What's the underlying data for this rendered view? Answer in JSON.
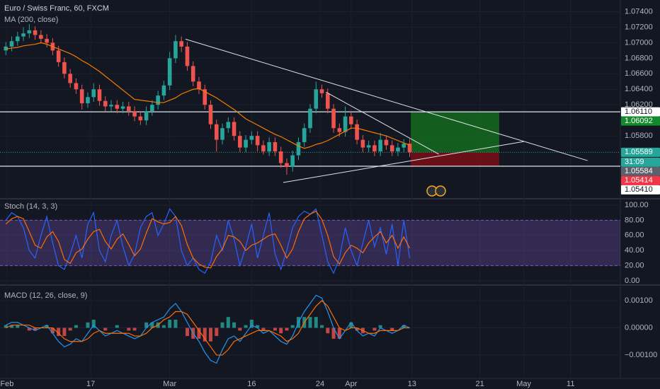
{
  "chart_data": [
    {
      "type": "candlestick",
      "title": "Euro / Swiss Franc, 60, FXCM",
      "xlim": [
        -1,
        105
      ],
      "xticks": [
        {
          "value": 0.2,
          "label": "Feb"
        },
        {
          "value": 14.5,
          "label": "17"
        },
        {
          "value": 28,
          "label": "Mar"
        },
        {
          "value": 42,
          "label": "16"
        },
        {
          "value": 53.7,
          "label": "24"
        },
        {
          "value": 59,
          "label": "Apr"
        },
        {
          "value": 69.4,
          "label": "13"
        },
        {
          "value": 81,
          "label": "21"
        },
        {
          "value": 88.5,
          "label": "May"
        },
        {
          "value": 96.5,
          "label": "11"
        }
      ],
      "ylim": [
        1.05,
        1.0755
      ],
      "yticks": [
        {
          "value": 1.074,
          "label": "1.07400"
        },
        {
          "value": 1.072,
          "label": "1.07200"
        },
        {
          "value": 1.07,
          "label": "1.07000"
        },
        {
          "value": 1.068,
          "label": "1.06800"
        },
        {
          "value": 1.066,
          "label": "1.06600"
        },
        {
          "value": 1.064,
          "label": "1.06400"
        },
        {
          "value": 1.062,
          "label": "1.06200"
        },
        {
          "value": 1.058,
          "label": "1.05800"
        }
      ],
      "grid": true,
      "up_color": "#26a69a",
      "down_color": "#ef5350",
      "open": [
        1.069,
        1.0695,
        1.0702,
        1.0708,
        1.0712,
        1.0716,
        1.071,
        1.0705,
        1.07,
        1.069,
        1.0675,
        1.066,
        1.0648,
        1.064,
        1.0622,
        1.063,
        1.064,
        1.0625,
        1.0618,
        1.062,
        1.0615,
        1.0618,
        1.0612,
        1.0605,
        1.06,
        1.0612,
        1.062,
        1.0632,
        1.0645,
        1.068,
        1.0702,
        1.0695,
        1.067,
        1.065,
        1.064,
        1.062,
        1.0595,
        1.0575,
        1.059,
        1.0598,
        1.058,
        1.0565,
        1.0575,
        1.058,
        1.0568,
        1.056,
        1.0572,
        1.056,
        1.0545,
        1.054,
        1.0555,
        1.0572,
        1.059,
        1.0615,
        1.064,
        1.0635,
        1.0615,
        1.059,
        1.0585,
        1.0605,
        1.0595,
        1.0575,
        1.0565,
        1.0568,
        1.056,
        1.0575,
        1.0568,
        1.056,
        1.0565,
        1.057
      ],
      "high": [
        1.0701,
        1.0708,
        1.0714,
        1.072,
        1.0724,
        1.0721,
        1.0716,
        1.0711,
        1.0706,
        1.0696,
        1.0681,
        1.0666,
        1.0654,
        1.0646,
        1.0636,
        1.0648,
        1.0646,
        1.0631,
        1.0626,
        1.0626,
        1.0624,
        1.0624,
        1.0618,
        1.0611,
        1.0618,
        1.0626,
        1.0638,
        1.0651,
        1.0688,
        1.071,
        1.0708,
        1.0701,
        1.0676,
        1.0656,
        1.0646,
        1.0626,
        1.0601,
        1.0596,
        1.0604,
        1.0604,
        1.0586,
        1.0581,
        1.0586,
        1.0586,
        1.0574,
        1.0578,
        1.0578,
        1.0566,
        1.0551,
        1.0561,
        1.0578,
        1.0596,
        1.0621,
        1.065,
        1.0646,
        1.0641,
        1.0621,
        1.0596,
        1.0618,
        1.0611,
        1.0601,
        1.0581,
        1.0574,
        1.0574,
        1.0584,
        1.0581,
        1.0574,
        1.0571,
        1.0576,
        1.0576
      ],
      "low": [
        1.0684,
        1.0689,
        1.0696,
        1.0702,
        1.0706,
        1.0704,
        1.0699,
        1.0694,
        1.0684,
        1.0669,
        1.0654,
        1.0642,
        1.0634,
        1.0614,
        1.0616,
        1.0624,
        1.0619,
        1.0612,
        1.0612,
        1.0609,
        1.0609,
        1.0606,
        1.0599,
        1.0594,
        1.0594,
        1.0606,
        1.0614,
        1.0626,
        1.0639,
        1.0674,
        1.0688,
        1.0664,
        1.0644,
        1.0634,
        1.0614,
        1.0589,
        1.056,
        1.0569,
        1.0584,
        1.0574,
        1.0559,
        1.0559,
        1.0569,
        1.056,
        1.0556,
        1.0554,
        1.0554,
        1.0539,
        1.053,
        1.0534,
        1.0549,
        1.0566,
        1.0584,
        1.0609,
        1.0629,
        1.0609,
        1.0584,
        1.0579,
        1.0579,
        1.0589,
        1.0569,
        1.0559,
        1.0559,
        1.0554,
        1.0554,
        1.0562,
        1.0554,
        1.0554,
        1.0559,
        1.0553
      ],
      "close": [
        1.0695,
        1.0702,
        1.0708,
        1.0712,
        1.0716,
        1.071,
        1.0705,
        1.07,
        1.069,
        1.0675,
        1.066,
        1.0648,
        1.064,
        1.0622,
        1.063,
        1.064,
        1.0625,
        1.0618,
        1.062,
        1.0615,
        1.0618,
        1.0612,
        1.0605,
        1.06,
        1.0612,
        1.062,
        1.0632,
        1.0645,
        1.068,
        1.0702,
        1.0695,
        1.067,
        1.065,
        1.064,
        1.062,
        1.0595,
        1.0575,
        1.059,
        1.0598,
        1.058,
        1.0565,
        1.0575,
        1.058,
        1.0568,
        1.056,
        1.0572,
        1.056,
        1.0545,
        1.054,
        1.0555,
        1.0572,
        1.059,
        1.0615,
        1.064,
        1.0635,
        1.0615,
        1.059,
        1.0585,
        1.0605,
        1.0595,
        1.0575,
        1.0565,
        1.0568,
        1.056,
        1.0575,
        1.0568,
        1.056,
        1.0565,
        1.057,
        1.0559
      ],
      "series": [
        {
          "name": "MA (200, close)",
          "color": "#f57c00",
          "values": [
            1.0692,
            1.0693,
            1.0694,
            1.0696,
            1.0697,
            1.0698,
            1.07,
            1.0698,
            1.0695,
            1.0692,
            1.0689,
            1.0686,
            1.0682,
            1.0677,
            1.0673,
            1.0668,
            1.0663,
            1.0657,
            1.0651,
            1.0645,
            1.0639,
            1.0633,
            1.0627,
            1.0626,
            1.0625,
            1.0624,
            1.0623,
            1.0623,
            1.0626,
            1.0629,
            1.0634,
            1.0637,
            1.064,
            1.0641,
            1.0637,
            1.0633,
            1.0629,
            1.0624,
            1.0619,
            1.0614,
            1.0608,
            1.0602,
            1.0598,
            1.0594,
            1.059,
            1.0586,
            1.0582,
            1.0579,
            1.0575,
            1.0571,
            1.0567,
            1.0564,
            1.0566,
            1.0569,
            1.0571,
            1.0574,
            1.0578,
            1.0582,
            1.0586,
            1.059,
            1.059,
            1.0588,
            1.0586,
            1.0584,
            1.0582,
            1.058,
            1.0577,
            1.0574,
            1.0571,
            1.0568
          ]
        }
      ],
      "levels": [
        1.0611,
        1.0541
      ],
      "trend_lines": [
        {
          "x": [
            30.7,
            99.4
          ],
          "y": [
            1.07046,
            1.05482
          ]
        },
        {
          "x": [
            47.4,
            88.5
          ],
          "y": [
            1.052,
            1.05727
          ]
        },
        {
          "x": [
            54.7,
            74.0
          ],
          "y": [
            1.06364,
            1.05564
          ]
        }
      ],
      "position": {
        "x": [
          69.2,
          84.3
        ],
        "target": 1.0611,
        "entry": 1.05589,
        "stop": 1.05414
      },
      "price_labels": [
        {
          "value": 1.0611,
          "label": "1.06110",
          "color": "#ffffff"
        },
        {
          "value": 1.06092,
          "label": "1.06092",
          "color": "#138a2c"
        },
        {
          "value": 1.05589,
          "label": "1.05589",
          "color": "#26a69a"
        },
        {
          "label": "31:09",
          "color": "#26a69a"
        },
        {
          "value": 1.05584,
          "label": "1.05584",
          "color": "#5d606b"
        },
        {
          "value": 1.05414,
          "label": "1.05414",
          "color": "#f23645"
        },
        {
          "value": 1.0541,
          "label": "1.05410",
          "color": "#ffffff"
        }
      ]
    },
    {
      "type": "line",
      "title": "Stoch (14, 3, 3)",
      "ylim": [
        -4.7,
        107.5
      ],
      "yticks": [
        {
          "value": 100,
          "label": "100.00"
        },
        {
          "value": 80,
          "label": "80.00"
        },
        {
          "value": 60,
          "label": "60.00"
        },
        {
          "value": 40,
          "label": "40.00"
        },
        {
          "value": 20,
          "label": "20.00"
        },
        {
          "value": 0,
          "label": "0.00"
        }
      ],
      "bands": [
        20,
        80
      ],
      "band_color": "#7e57c2",
      "series": [
        {
          "color": "#2962ff",
          "values": [
            80,
            90,
            85,
            70,
            40,
            30,
            60,
            85,
            50,
            20,
            15,
            35,
            60,
            30,
            75,
            90,
            40,
            25,
            60,
            80,
            45,
            20,
            35,
            70,
            85,
            90,
            60,
            75,
            95,
            85,
            40,
            20,
            30,
            15,
            10,
            25,
            60,
            40,
            80,
            55,
            20,
            45,
            75,
            30,
            60,
            90,
            35,
            15,
            40,
            70,
            85,
            92,
            88,
            95,
            60,
            25,
            10,
            30,
            70,
            40,
            20,
            50,
            80,
            45,
            70,
            35,
            75,
            20,
            80,
            30
          ]
        },
        {
          "color": "#ff6d00",
          "values": [
            75,
            82,
            85,
            82,
            65,
            47,
            43,
            58,
            65,
            52,
            28,
            23,
            37,
            42,
            55,
            65,
            68,
            52,
            42,
            55,
            62,
            48,
            33,
            42,
            63,
            82,
            78,
            75,
            77,
            85,
            73,
            48,
            30,
            22,
            18,
            17,
            32,
            42,
            60,
            58,
            52,
            40,
            47,
            50,
            55,
            60,
            62,
            47,
            30,
            42,
            65,
            82,
            88,
            92,
            81,
            60,
            32,
            22,
            37,
            47,
            43,
            37,
            50,
            58,
            65,
            50,
            60,
            43,
            58,
            43
          ]
        }
      ]
    },
    {
      "type": "macd",
      "title": "MACD (12, 26, close, 9)",
      "ylim": [
        -0.00186,
        0.00155
      ],
      "yticks": [
        {
          "value": 0.001,
          "label": "0.00100"
        },
        {
          "value": 0,
          "label": "0.00000"
        },
        {
          "value": -0.001,
          "label": "−0.00100"
        }
      ],
      "series": [
        {
          "kind": "bar",
          "color": "#26a69a",
          "down_color": "#ef5350",
          "values": [
            0.0001,
            0.0001,
            0.0001,
            0,
            -0.0001,
            -0.0001,
            0,
            0.0001,
            -0.0002,
            -0.0003,
            -0.0003,
            -0.0001,
            0.0001,
            0,
            0.0002,
            0.0003,
            0,
            -0.0001,
            0,
            0.0001,
            0,
            -0.0001,
            -0.0001,
            0,
            0.0002,
            0.0002,
            0.0002,
            0.0001,
            0.0003,
            0.0003,
            0,
            -0.0003,
            -0.0004,
            -0.0004,
            -0.0005,
            -0.0005,
            -0.0003,
            0.0002,
            0.0004,
            0.0002,
            -0.0001,
            0.0001,
            0.0003,
            0.0001,
            -0.0001,
            0,
            -0.0001,
            -0.0002,
            -0.0001,
            0.0001,
            0.0004,
            0.0004,
            0.0004,
            0.0004,
            0.0001,
            -0.0002,
            -0.0004,
            -0.0004,
            0,
            0.0002,
            -0.0001,
            -0.0002,
            0,
            -0.0001,
            0.0001,
            0,
            -0.0001,
            0,
            0.0001,
            0
          ]
        },
        {
          "kind": "line",
          "color": "#2196f3",
          "values": [
            0.0001,
            0.0002,
            0.0002,
            0.0001,
            0,
            -0.0001,
            0,
            0.0001,
            -0.0002,
            -0.0005,
            -0.0007,
            -0.0006,
            -0.0004,
            -0.0005,
            -0.0002,
            0.0001,
            -0.0001,
            -0.0003,
            -0.0002,
            -0.0001,
            -0.0002,
            -0.0003,
            -0.0004,
            -0.0003,
            0,
            0.0002,
            0.0003,
            0.0004,
            0.0007,
            0.0009,
            0.0006,
            0.0002,
            -0.0002,
            -0.0005,
            -0.0009,
            -0.0012,
            -0.0013,
            -0.0008,
            -0.0004,
            -0.0003,
            -0.0005,
            -0.0002,
            0.0001,
            0,
            -0.0002,
            -0.0001,
            -0.0003,
            -0.0005,
            -0.0006,
            -0.0003,
            0.0002,
            0.0006,
            0.0009,
            0.0012,
            0.0011,
            0.0006,
            0,
            -0.0004,
            -0.0001,
            0.0002,
            -0.0001,
            -0.0003,
            -0.0002,
            -0.0003,
            0,
            -0.0001,
            -0.0002,
            -0.0001,
            0.0001,
            0
          ]
        },
        {
          "kind": "line",
          "color": "#ff6d00",
          "values": [
            0,
            0.0001,
            0.0001,
            0.0001,
            0.0001,
            0,
            0,
            0,
            0,
            -0.0002,
            -0.0004,
            -0.0005,
            -0.0005,
            -0.0005,
            -0.0004,
            -0.0002,
            -0.0001,
            -0.0002,
            -0.0002,
            -0.0002,
            -0.0002,
            -0.0002,
            -0.0003,
            -0.0003,
            -0.0002,
            0,
            0.0001,
            0.0003,
            0.0004,
            0.0006,
            0.0006,
            0.0005,
            0.0002,
            -0.0001,
            -0.0004,
            -0.0007,
            -0.001,
            -0.001,
            -0.0008,
            -0.0005,
            -0.0004,
            -0.0003,
            -0.0002,
            -0.0001,
            -0.0001,
            -0.0001,
            -0.0002,
            -0.0003,
            -0.0005,
            -0.0004,
            -0.0002,
            0.0002,
            0.0005,
            0.0008,
            0.001,
            0.0008,
            0.0004,
            0,
            -0.0001,
            0,
            0,
            -0.0001,
            -0.0002,
            -0.0002,
            -0.0001,
            -0.0001,
            -0.0001,
            -0.0001,
            0,
            0
          ]
        }
      ]
    }
  ]
}
